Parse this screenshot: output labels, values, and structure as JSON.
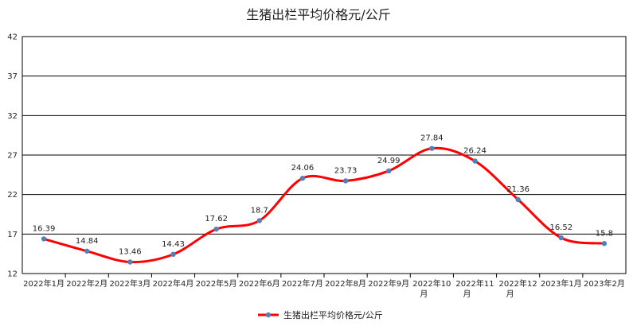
{
  "chart_data": {
    "type": "line",
    "title": "生猪出栏平均价格元/公斤",
    "xlabel": "",
    "ylabel": "",
    "ylim": [
      12,
      42
    ],
    "yticks": [
      12,
      17,
      22,
      27,
      32,
      37,
      42
    ],
    "categories": [
      "2022年1月",
      "2022年2月",
      "2022年3月",
      "2022年4月",
      "2022年5月",
      "2022年6月",
      "2022年7月",
      "2022年8月",
      "2022年9月",
      "2022年10月",
      "2022年11月",
      "2022年12月",
      "2023年1月",
      "2023年2月"
    ],
    "series": [
      {
        "name": "生猪出栏平均价格元/公斤",
        "values": [
          16.39,
          14.84,
          13.46,
          14.43,
          17.62,
          18.7,
          24.06,
          23.73,
          24.99,
          27.84,
          26.24,
          21.36,
          16.52,
          15.8
        ],
        "labels": [
          "16.39",
          "14.84",
          "13.46",
          "14.43",
          "17.62",
          "18.7",
          "24.06",
          "23.73",
          "24.99",
          "27.84",
          "26.24",
          "21.36",
          "16.52",
          "15.8"
        ],
        "line_color": "#ff0000",
        "marker_color": "#4f81bd"
      }
    ],
    "grid": true,
    "legend_position": "bottom"
  }
}
